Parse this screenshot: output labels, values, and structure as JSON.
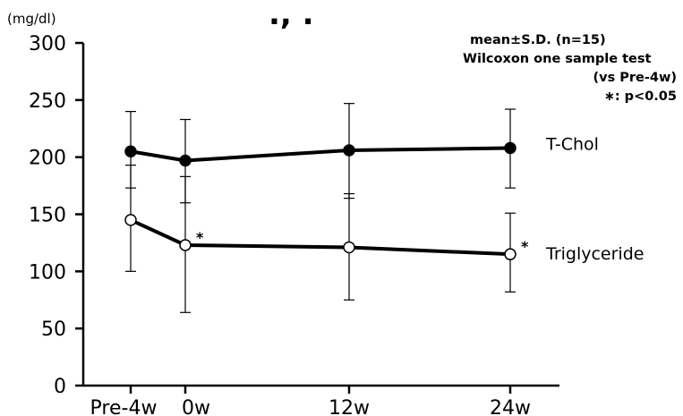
{
  "top_fragment": "., .",
  "chart_data": {
    "type": "line",
    "unit_label": "(mg/dl)",
    "categories": [
      "Pre-4w",
      "0w",
      "12w",
      "24w"
    ],
    "x_weeks": [
      -4,
      0,
      12,
      24
    ],
    "ylim": [
      0,
      300
    ],
    "yticks": [
      0,
      50,
      100,
      150,
      200,
      250,
      300
    ],
    "grid": false,
    "series": [
      {
        "name": "T-Chol",
        "marker": "filled-circle",
        "values": [
          205,
          197,
          206,
          208
        ],
        "sd_upper": [
          240,
          233,
          247,
          242
        ],
        "sd_lower": [
          173,
          160,
          164,
          173
        ],
        "significance": [
          "",
          "",
          "",
          ""
        ]
      },
      {
        "name": "Triglyceride",
        "marker": "open-circle",
        "values": [
          145,
          123,
          121,
          115
        ],
        "sd_upper": [
          193,
          183,
          168,
          151
        ],
        "sd_lower": [
          100,
          64,
          75,
          82
        ],
        "significance": [
          "",
          "*",
          "",
          "*"
        ]
      }
    ],
    "annotations": [
      "mean±S.D. (n=15)",
      "Wilcoxon one sample test",
      "(vs Pre-4w)",
      "∗: p<0.05"
    ]
  }
}
